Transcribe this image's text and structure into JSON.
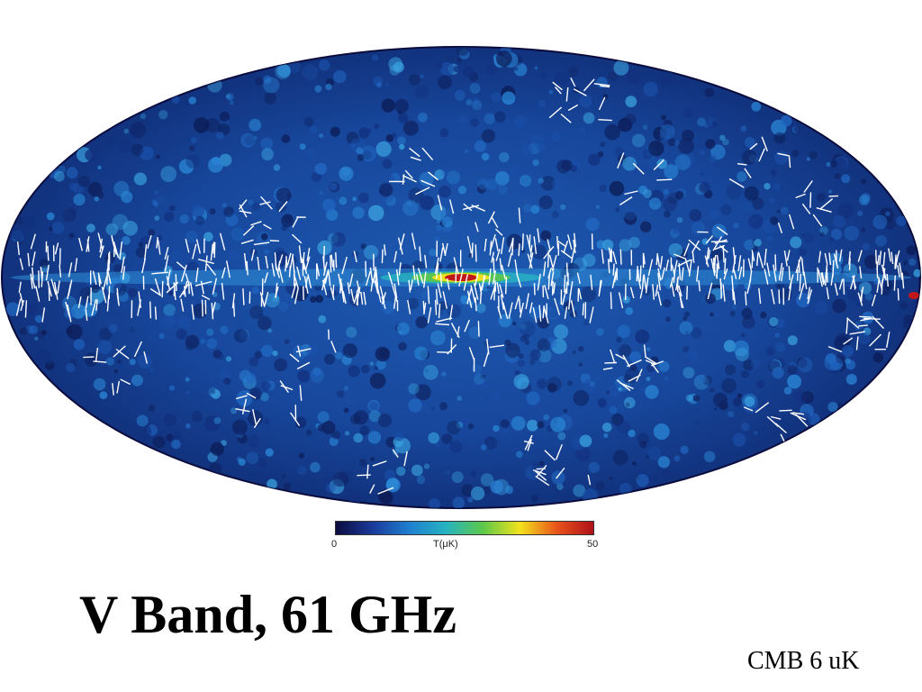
{
  "slide": {
    "title": "V Band, 61 GHz",
    "footnote": "CMB 6 uK"
  },
  "map": {
    "projection": "mollweide",
    "content": "sky temperature map with white polarization vectors",
    "colors": {
      "outline": "#0b0c3e",
      "low": "#141a6a",
      "mid": "#1a5fb0",
      "high": "#c0181a",
      "vectors": "#ffffff"
    }
  },
  "colorbar": {
    "min_label": "0",
    "max_label": "50",
    "unit_label": "T(μK)",
    "gradient": [
      "#0b0c3e",
      "#1a3a9a",
      "#1f7fd0",
      "#27b3c0",
      "#5cc84a",
      "#f2e21c",
      "#e8541a",
      "#b0101a"
    ]
  }
}
